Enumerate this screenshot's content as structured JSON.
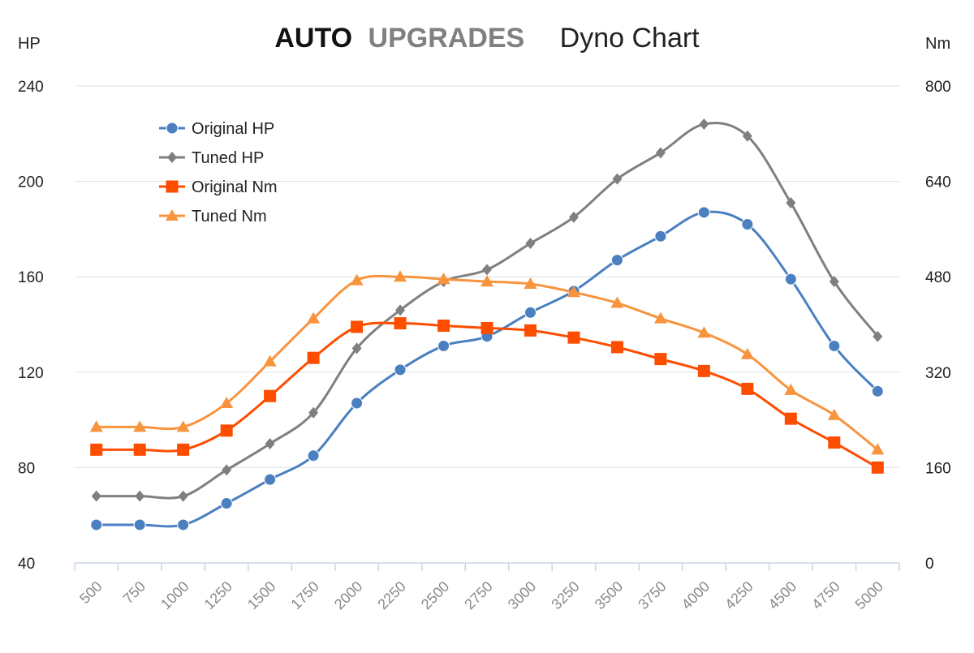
{
  "header": {
    "brand_primary": "AUTO",
    "brand_secondary": "UPGRADES",
    "title": "Dyno Chart"
  },
  "colors": {
    "brand_primary": "#111111",
    "brand_secondary": "#808080",
    "grid": "#dde3ea",
    "axis": "#c9d6e6",
    "tick_text": "#8a8a8a",
    "label_text": "#222222"
  },
  "chart_data": {
    "type": "line",
    "title": "Dyno Chart",
    "x": [
      500,
      750,
      1000,
      1250,
      1500,
      1750,
      2000,
      2250,
      2500,
      2750,
      3000,
      3250,
      3500,
      3750,
      4000,
      4250,
      4500,
      4750,
      5000
    ],
    "y_left": {
      "label": "HP",
      "range": [
        40,
        240
      ],
      "ticks": [
        40,
        80,
        120,
        160,
        200,
        240
      ]
    },
    "y_right": {
      "label": "Nm",
      "range": [
        0,
        800
      ],
      "ticks": [
        0,
        160,
        320,
        480,
        640,
        800
      ]
    },
    "grid": true,
    "legend_position": "top-left",
    "series": [
      {
        "name": "Original HP",
        "axis": "left",
        "color": "#4a7fc0",
        "marker": "circle",
        "values": [
          56,
          56,
          56,
          65,
          75,
          85,
          107,
          121,
          131,
          135,
          145,
          154,
          167,
          177,
          187,
          182,
          159,
          131,
          112
        ]
      },
      {
        "name": "Tuned HP",
        "axis": "left",
        "color": "#7f7f7f",
        "marker": "diamond",
        "values": [
          68,
          68,
          68,
          79,
          90,
          103,
          130,
          146,
          158,
          163,
          174,
          185,
          201,
          212,
          224,
          219,
          191,
          158,
          135
        ]
      },
      {
        "name": "Original Nm",
        "axis": "right",
        "color": "#ff4d00",
        "marker": "square",
        "values": [
          190,
          190,
          190,
          222,
          280,
          344,
          396,
          402,
          398,
          394,
          390,
          378,
          362,
          342,
          322,
          292,
          242,
          202,
          160
        ]
      },
      {
        "name": "Tuned Nm",
        "axis": "right",
        "color": "#f7943d",
        "marker": "triangle",
        "values": [
          228,
          228,
          228,
          268,
          338,
          410,
          474,
          480,
          476,
          472,
          468,
          454,
          436,
          410,
          386,
          350,
          290,
          248,
          190
        ]
      }
    ]
  }
}
